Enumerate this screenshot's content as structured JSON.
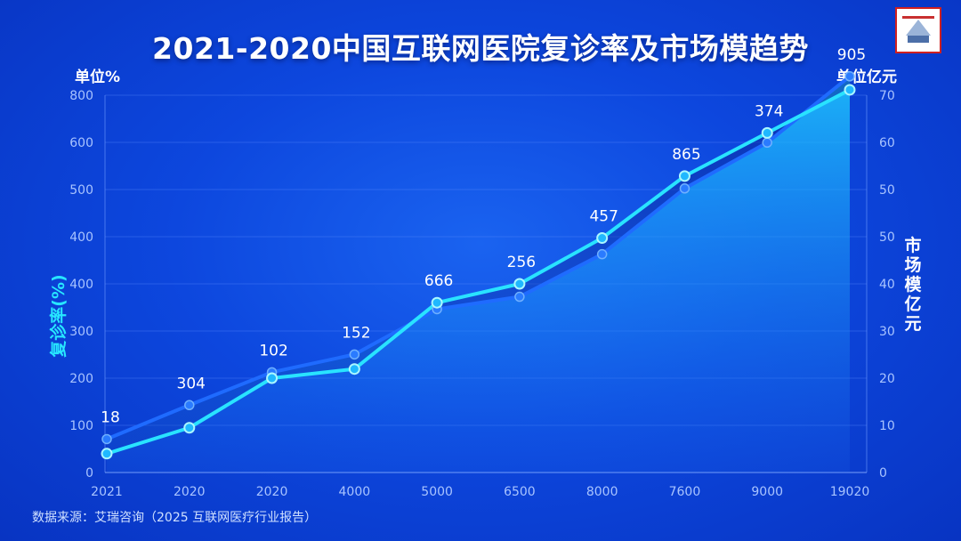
{
  "chart_data": {
    "type": "line",
    "title": "2021-2020中国互联网医院复诊率及市场模趋势",
    "unit_left": "单位%",
    "unit_right": "单位亿元",
    "ylabel_left": "复诊率(%)",
    "ylabel_right": "市场模亿元",
    "categories": [
      "2021",
      "2020",
      "2020",
      "4000",
      "5000",
      "6500",
      "8000",
      "7600",
      "9000",
      "19020"
    ],
    "y_left_ticks": [
      "0",
      "100",
      "200",
      "300",
      "400",
      "400",
      "500",
      "600",
      "800"
    ],
    "y_right_ticks": [
      "0",
      "10",
      "20",
      "30",
      "40",
      "50",
      "50",
      "60",
      "70"
    ],
    "ylim_right": [
      0,
      70
    ],
    "series": [
      {
        "values": [
          3.5,
          8.3,
          17.5,
          19.2,
          31.5,
          35.0,
          43.5,
          55.0,
          63.0,
          71.0
        ],
        "color": "#29e3ff"
      },
      {
        "values": [
          6.2,
          12.5,
          18.6,
          21.9,
          30.3,
          32.6,
          40.5,
          52.7,
          61.2,
          73.5
        ],
        "color": "#1f6bff"
      }
    ],
    "data_labels": [
      "18",
      "304",
      "102",
      "152",
      "666",
      "256",
      "457",
      "865",
      "374",
      "905"
    ],
    "grid": true,
    "source": "数据来源：艾瑞咨询（2025 互联网医疗行业报告）"
  }
}
